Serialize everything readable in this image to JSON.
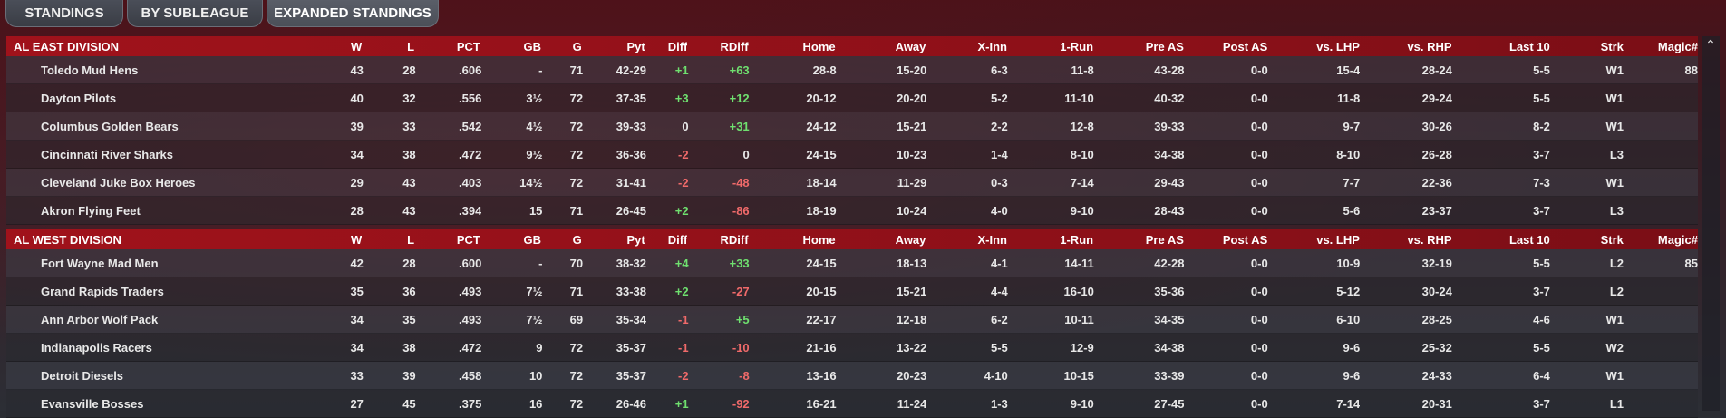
{
  "tabs": [
    {
      "label": "STANDINGS"
    },
    {
      "label": "BY SUBLEAGUE"
    },
    {
      "label": "EXPANDED STANDINGS"
    }
  ],
  "columns": [
    "W",
    "L",
    "PCT",
    "GB",
    "G",
    "Pyt",
    "Diff",
    "RDiff",
    "Home",
    "Away",
    "X-Inn",
    "1-Run",
    "Pre AS",
    "Post AS",
    "vs. LHP",
    "vs. RHP",
    "Last 10",
    "Strk",
    "Magic#"
  ],
  "divisions": [
    {
      "name": "AL EAST DIVISION",
      "teams": [
        {
          "name": "Toledo  Mud Hens",
          "W": "43",
          "L": "28",
          "PCT": ".606",
          "GB": "-",
          "G": "71",
          "Pyt": "42-29",
          "Diff": "+1",
          "RDiff": "+63",
          "Home": "28-8",
          "Away": "15-20",
          "XInn": "6-3",
          "OneRun": "11-8",
          "PreAS": "43-28",
          "PostAS": "0-0",
          "LHP": "15-4",
          "RHP": "28-24",
          "Last10": "5-5",
          "Strk": "W1",
          "Magic": "88"
        },
        {
          "name": "Dayton Pilots",
          "W": "40",
          "L": "32",
          "PCT": ".556",
          "GB": "3½",
          "G": "72",
          "Pyt": "37-35",
          "Diff": "+3",
          "RDiff": "+12",
          "Home": "20-12",
          "Away": "20-20",
          "XInn": "5-2",
          "OneRun": "11-10",
          "PreAS": "40-32",
          "PostAS": "0-0",
          "LHP": "11-8",
          "RHP": "29-24",
          "Last10": "5-5",
          "Strk": "W1",
          "Magic": ""
        },
        {
          "name": "Columbus Golden Bears",
          "W": "39",
          "L": "33",
          "PCT": ".542",
          "GB": "4½",
          "G": "72",
          "Pyt": "39-33",
          "Diff": "0",
          "RDiff": "+31",
          "Home": "24-12",
          "Away": "15-21",
          "XInn": "2-2",
          "OneRun": "12-8",
          "PreAS": "39-33",
          "PostAS": "0-0",
          "LHP": "9-7",
          "RHP": "30-26",
          "Last10": "8-2",
          "Strk": "W1",
          "Magic": ""
        },
        {
          "name": "Cincinnati River Sharks",
          "W": "34",
          "L": "38",
          "PCT": ".472",
          "GB": "9½",
          "G": "72",
          "Pyt": "36-36",
          "Diff": "-2",
          "RDiff": "0",
          "Home": "24-15",
          "Away": "10-23",
          "XInn": "1-4",
          "OneRun": "8-10",
          "PreAS": "34-38",
          "PostAS": "0-0",
          "LHP": "8-10",
          "RHP": "26-28",
          "Last10": "3-7",
          "Strk": "L3",
          "Magic": ""
        },
        {
          "name": "Cleveland Juke Box Heroes",
          "W": "29",
          "L": "43",
          "PCT": ".403",
          "GB": "14½",
          "G": "72",
          "Pyt": "31-41",
          "Diff": "-2",
          "RDiff": "-48",
          "Home": "18-14",
          "Away": "11-29",
          "XInn": "0-3",
          "OneRun": "7-14",
          "PreAS": "29-43",
          "PostAS": "0-0",
          "LHP": "7-7",
          "RHP": "22-36",
          "Last10": "7-3",
          "Strk": "W1",
          "Magic": ""
        },
        {
          "name": "Akron  Flying Feet",
          "W": "28",
          "L": "43",
          "PCT": ".394",
          "GB": "15",
          "G": "71",
          "Pyt": "26-45",
          "Diff": "+2",
          "RDiff": "-86",
          "Home": "18-19",
          "Away": "10-24",
          "XInn": "4-0",
          "OneRun": "9-10",
          "PreAS": "28-43",
          "PostAS": "0-0",
          "LHP": "5-6",
          "RHP": "23-37",
          "Last10": "3-7",
          "Strk": "L3",
          "Magic": ""
        }
      ]
    },
    {
      "name": "AL WEST DIVISION",
      "teams": [
        {
          "name": "Fort Wayne Mad Men",
          "W": "42",
          "L": "28",
          "PCT": ".600",
          "GB": "-",
          "G": "70",
          "Pyt": "38-32",
          "Diff": "+4",
          "RDiff": "+33",
          "Home": "24-15",
          "Away": "18-13",
          "XInn": "4-1",
          "OneRun": "14-11",
          "PreAS": "42-28",
          "PostAS": "0-0",
          "LHP": "10-9",
          "RHP": "32-19",
          "Last10": "5-5",
          "Strk": "L2",
          "Magic": "85"
        },
        {
          "name": "Grand Rapids Traders",
          "W": "35",
          "L": "36",
          "PCT": ".493",
          "GB": "7½",
          "G": "71",
          "Pyt": "33-38",
          "Diff": "+2",
          "RDiff": "-27",
          "Home": "20-15",
          "Away": "15-21",
          "XInn": "4-4",
          "OneRun": "16-10",
          "PreAS": "35-36",
          "PostAS": "0-0",
          "LHP": "5-12",
          "RHP": "30-24",
          "Last10": "3-7",
          "Strk": "L2",
          "Magic": ""
        },
        {
          "name": "Ann Arbor Wolf Pack",
          "W": "34",
          "L": "35",
          "PCT": ".493",
          "GB": "7½",
          "G": "69",
          "Pyt": "35-34",
          "Diff": "-1",
          "RDiff": "+5",
          "Home": "22-17",
          "Away": "12-18",
          "XInn": "6-2",
          "OneRun": "10-11",
          "PreAS": "34-35",
          "PostAS": "0-0",
          "LHP": "6-10",
          "RHP": "28-25",
          "Last10": "4-6",
          "Strk": "W1",
          "Magic": ""
        },
        {
          "name": "Indianapolis Racers",
          "W": "34",
          "L": "38",
          "PCT": ".472",
          "GB": "9",
          "G": "72",
          "Pyt": "35-37",
          "Diff": "-1",
          "RDiff": "-10",
          "Home": "21-16",
          "Away": "13-22",
          "XInn": "5-5",
          "OneRun": "12-9",
          "PreAS": "34-38",
          "PostAS": "0-0",
          "LHP": "9-6",
          "RHP": "25-32",
          "Last10": "5-5",
          "Strk": "W2",
          "Magic": ""
        },
        {
          "name": "Detroit Diesels",
          "W": "33",
          "L": "39",
          "PCT": ".458",
          "GB": "10",
          "G": "72",
          "Pyt": "35-37",
          "Diff": "-2",
          "RDiff": "-8",
          "Home": "13-16",
          "Away": "20-23",
          "XInn": "4-10",
          "OneRun": "10-15",
          "PreAS": "33-39",
          "PostAS": "0-0",
          "LHP": "9-6",
          "RHP": "24-33",
          "Last10": "6-4",
          "Strk": "W1",
          "Magic": ""
        },
        {
          "name": "Evansville Bosses",
          "W": "27",
          "L": "45",
          "PCT": ".375",
          "GB": "16",
          "G": "72",
          "Pyt": "26-46",
          "Diff": "+1",
          "RDiff": "-92",
          "Home": "16-21",
          "Away": "11-24",
          "XInn": "1-3",
          "OneRun": "9-10",
          "PreAS": "27-45",
          "PostAS": "0-0",
          "LHP": "7-14",
          "RHP": "20-31",
          "Last10": "3-7",
          "Strk": "L1",
          "Magic": ""
        }
      ]
    }
  ],
  "colors": {
    "positive": "#6fe06f",
    "negative": "#f06a6a",
    "header": "#a0121b"
  },
  "scrollbar": {
    "up_icon": "chevron-up-icon"
  }
}
